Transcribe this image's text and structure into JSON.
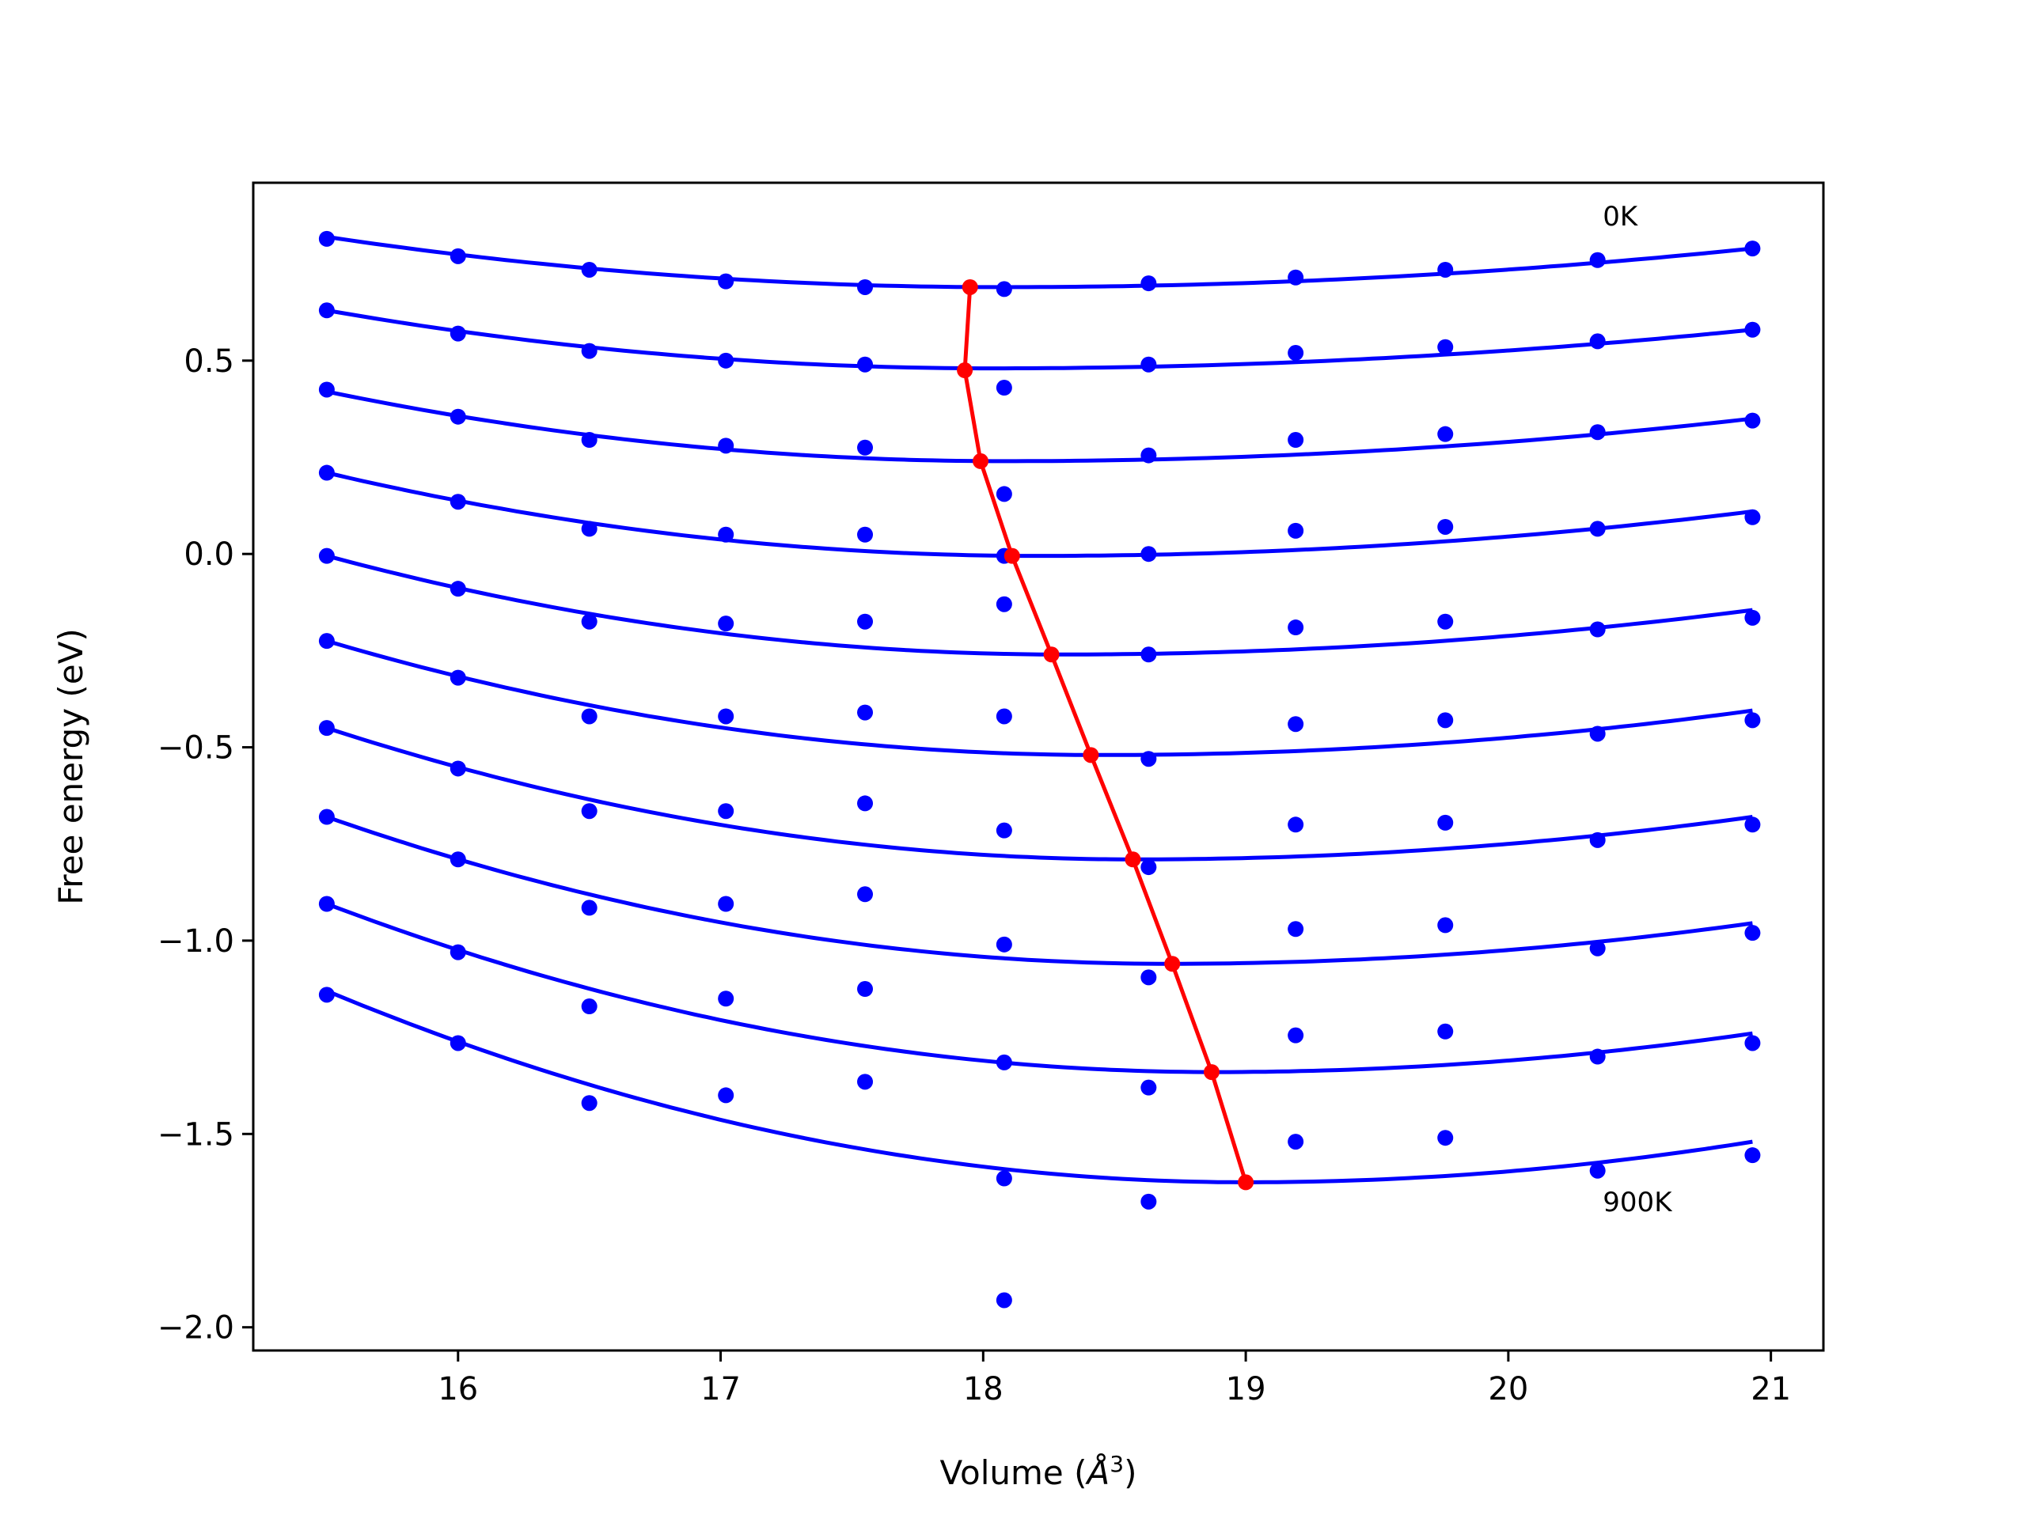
{
  "chart_data": {
    "type": "scatter",
    "xlabel": "Volume (",
    "xlabel_unit": "Å",
    "xlabel_sup": "3",
    "xlabel_close": ")",
    "ylabel": "Free energy (eV)",
    "xlim": [
      15.22,
      21.2
    ],
    "ylim": [
      -2.06,
      0.96
    ],
    "xticks": [
      16,
      17,
      18,
      19,
      20,
      21
    ],
    "xtick_labels": [
      "16",
      "17",
      "18",
      "19",
      "20",
      "21"
    ],
    "yticks": [
      0.5,
      0.0,
      -0.5,
      -1.0,
      -1.5,
      -2.0
    ],
    "ytick_labels": [
      "0.5",
      "0.0",
      "−0.5",
      "−1.0",
      "−1.5",
      "−2.0"
    ],
    "grid": false,
    "annotations": [
      {
        "text": "0K",
        "x": 20.36,
        "y": 0.85
      },
      {
        "text": "900K",
        "x": 20.36,
        "y": -1.7
      }
    ],
    "colors": {
      "points": "#0000ff",
      "fit": "#0000ff",
      "minimum": "#ff0000"
    },
    "x": [
      15.5,
      16.0,
      16.5,
      17.02,
      17.55,
      18.08,
      18.63,
      19.19,
      19.76,
      20.34,
      20.93
    ],
    "series": [
      {
        "fit": [
          0.82,
          0.69,
          0.79,
          18.07
        ],
        "values": [
          0.815,
          0.77,
          0.735,
          0.705,
          0.69,
          0.685,
          0.7,
          0.715,
          0.735,
          0.76,
          0.79
        ]
      },
      {
        "fit": [
          0.63,
          0.48,
          0.58,
          18.03
        ],
        "values": [
          0.63,
          0.57,
          0.525,
          0.5,
          0.49,
          0.43,
          0.49,
          0.52,
          0.535,
          0.55,
          0.58
        ]
      },
      {
        "fit": [
          0.42,
          0.24,
          0.35,
          18.08
        ],
        "values": [
          0.425,
          0.355,
          0.295,
          0.28,
          0.275,
          0.155,
          0.255,
          0.295,
          0.31,
          0.315,
          0.345
        ]
      },
      {
        "fit": [
          0.21,
          -0.005,
          0.11,
          18.2
        ],
        "values": [
          0.21,
          0.135,
          0.065,
          0.05,
          0.05,
          -0.005,
          0.0,
          0.06,
          0.07,
          0.065,
          0.095
        ]
      },
      {
        "fit": [
          -0.005,
          -0.26,
          -0.145,
          18.3
        ],
        "values": [
          -0.005,
          -0.09,
          -0.175,
          -0.18,
          -0.175,
          -0.13,
          -0.26,
          -0.19,
          -0.175,
          -0.195,
          -0.165
        ]
      },
      {
        "fit": [
          -0.225,
          -0.52,
          -0.405,
          18.45
        ],
        "values": [
          -0.225,
          -0.32,
          -0.42,
          -0.42,
          -0.41,
          -0.42,
          -0.53,
          -0.44,
          -0.43,
          -0.465,
          -0.43
        ]
      },
      {
        "fit": [
          -0.45,
          -0.79,
          -0.68,
          18.58
        ],
        "values": [
          -0.45,
          -0.555,
          -0.665,
          -0.665,
          -0.645,
          -0.715,
          -0.81,
          -0.7,
          -0.695,
          -0.74,
          -0.7
        ]
      },
      {
        "fit": [
          -0.68,
          -1.06,
          -0.955,
          18.7
        ],
        "values": [
          -0.68,
          -0.79,
          -0.915,
          -0.905,
          -0.88,
          -1.01,
          -1.095,
          -0.97,
          -0.96,
          -1.02,
          -0.98
        ]
      },
      {
        "fit": [
          -0.905,
          -1.34,
          -1.24,
          18.88
        ],
        "values": [
          -0.905,
          -1.03,
          -1.17,
          -1.15,
          -1.125,
          -1.315,
          -1.38,
          -1.245,
          -1.235,
          -1.3,
          -1.265
        ]
      },
      {
        "fit": [
          -1.13,
          -1.625,
          -1.52,
          19.0
        ],
        "values": [
          -1.14,
          -1.265,
          -1.42,
          -1.4,
          -1.365,
          -1.615,
          -1.675,
          -1.52,
          -1.51,
          -1.595,
          -1.555
        ]
      }
    ],
    "extra_points": [
      {
        "x": 18.08,
        "y": -1.93
      }
    ],
    "minimum_curve": {
      "x": [
        17.95,
        17.93,
        17.99,
        18.11,
        18.26,
        18.41,
        18.57,
        18.72,
        18.87,
        19.0
      ],
      "y": [
        0.69,
        0.475,
        0.24,
        -0.005,
        -0.26,
        -0.52,
        -0.79,
        -1.06,
        -1.34,
        -1.625
      ]
    }
  }
}
